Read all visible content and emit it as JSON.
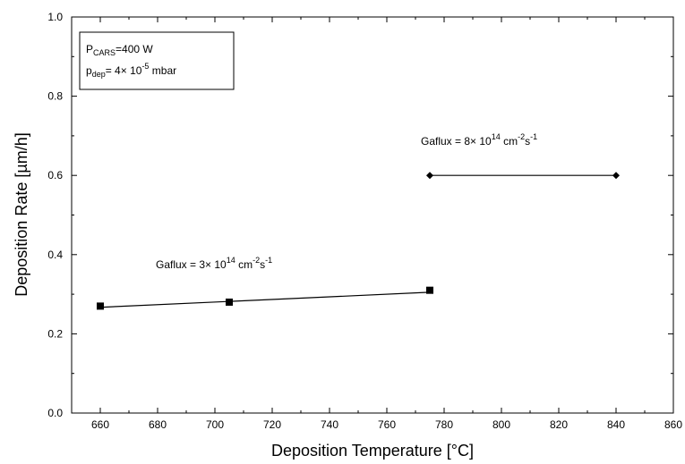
{
  "chart_data": {
    "type": "line",
    "xlabel": "Deposition Temperature [°C]",
    "ylabel": "Deposition Rate [µm/h]",
    "xlim": [
      650,
      860
    ],
    "ylim": [
      0.0,
      1.0
    ],
    "xticks": [
      660,
      680,
      700,
      720,
      740,
      760,
      780,
      800,
      820,
      840,
      860
    ],
    "xtick_labels": [
      "660",
      "680",
      "700",
      "720",
      "740",
      "760",
      "780",
      "800",
      "820",
      "840",
      "860"
    ],
    "yticks": [
      0.0,
      0.2,
      0.4,
      0.6,
      0.8,
      1.0
    ],
    "ytick_labels": [
      "0.0",
      "0.2",
      "0.4",
      "0.6",
      "0.8",
      "1.0"
    ],
    "grid": false,
    "series": [
      {
        "marker": "square",
        "color": "#000000",
        "points": [
          {
            "x": 660,
            "y": 0.27
          },
          {
            "x": 705,
            "y": 0.28
          },
          {
            "x": 775,
            "y": 0.31
          }
        ],
        "fit_line": {
          "x": [
            660,
            775
          ],
          "y": [
            0.267,
            0.305
          ]
        },
        "annotation": {
          "prefix": "Gaflux = 3× 10",
          "sup1": "14",
          "mid": " cm",
          "sup2": "-2",
          "mid2": "s",
          "sup3": "-1"
        }
      },
      {
        "marker": "diamond",
        "color": "#000000",
        "points": [
          {
            "x": 775,
            "y": 0.6
          },
          {
            "x": 840,
            "y": 0.6
          }
        ],
        "annotation": {
          "prefix": "Gaflux = 8× 10",
          "sup1": "14",
          "mid": " cm",
          "sup2": "-2",
          "mid2": "s",
          "sup3": "-1"
        }
      }
    ],
    "legend_box": {
      "placement": "top-left",
      "line1": {
        "main": "P",
        "sub": "CARS",
        "rest": "=400 W"
      },
      "line2": {
        "main": "p",
        "sub": "dep",
        "rest1": "= 4× 10",
        "sup": "-5",
        "rest2": " mbar"
      }
    }
  }
}
